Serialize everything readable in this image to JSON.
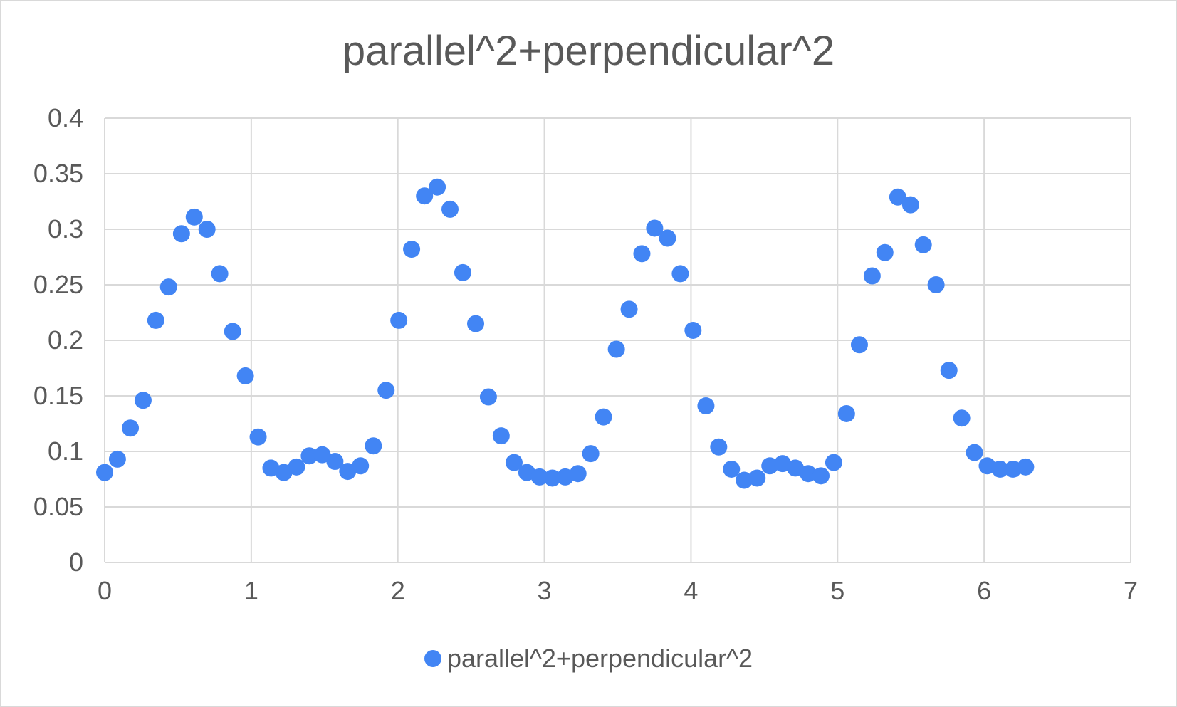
{
  "chart_data": {
    "type": "scatter",
    "title": "parallel^2+perpendicular^2",
    "xlabel": "",
    "ylabel": "",
    "xlim": [
      0,
      7
    ],
    "ylim": [
      0,
      0.4
    ],
    "x_ticks": [
      "0",
      "1",
      "2",
      "3",
      "4",
      "5",
      "6",
      "7"
    ],
    "y_ticks": [
      "0",
      "0.05",
      "0.1",
      "0.15",
      "0.2",
      "0.25",
      "0.3",
      "0.35",
      "0.4"
    ],
    "grid": true,
    "legend_position": "bottom",
    "series": [
      {
        "name": "parallel^2+perpendicular^2",
        "color": "#4285f4",
        "points": [
          [
            0.0,
            0.081
          ],
          [
            0.087,
            0.093
          ],
          [
            0.175,
            0.121
          ],
          [
            0.262,
            0.146
          ],
          [
            0.349,
            0.218
          ],
          [
            0.436,
            0.248
          ],
          [
            0.524,
            0.296
          ],
          [
            0.611,
            0.311
          ],
          [
            0.698,
            0.3
          ],
          [
            0.785,
            0.26
          ],
          [
            0.873,
            0.208
          ],
          [
            0.96,
            0.168
          ],
          [
            1.047,
            0.113
          ],
          [
            1.134,
            0.085
          ],
          [
            1.222,
            0.081
          ],
          [
            1.309,
            0.086
          ],
          [
            1.396,
            0.096
          ],
          [
            1.484,
            0.097
          ],
          [
            1.571,
            0.091
          ],
          [
            1.658,
            0.082
          ],
          [
            1.745,
            0.087
          ],
          [
            1.833,
            0.105
          ],
          [
            1.92,
            0.155
          ],
          [
            2.007,
            0.218
          ],
          [
            2.094,
            0.282
          ],
          [
            2.182,
            0.33
          ],
          [
            2.269,
            0.338
          ],
          [
            2.356,
            0.318
          ],
          [
            2.443,
            0.261
          ],
          [
            2.531,
            0.215
          ],
          [
            2.618,
            0.149
          ],
          [
            2.705,
            0.114
          ],
          [
            2.793,
            0.09
          ],
          [
            2.88,
            0.081
          ],
          [
            2.967,
            0.077
          ],
          [
            3.054,
            0.076
          ],
          [
            3.142,
            0.077
          ],
          [
            3.229,
            0.08
          ],
          [
            3.316,
            0.098
          ],
          [
            3.403,
            0.131
          ],
          [
            3.491,
            0.192
          ],
          [
            3.578,
            0.228
          ],
          [
            3.665,
            0.278
          ],
          [
            3.752,
            0.301
          ],
          [
            3.84,
            0.292
          ],
          [
            3.927,
            0.26
          ],
          [
            4.014,
            0.209
          ],
          [
            4.102,
            0.141
          ],
          [
            4.189,
            0.104
          ],
          [
            4.276,
            0.084
          ],
          [
            4.363,
            0.074
          ],
          [
            4.451,
            0.076
          ],
          [
            4.538,
            0.087
          ],
          [
            4.625,
            0.089
          ],
          [
            4.712,
            0.085
          ],
          [
            4.8,
            0.08
          ],
          [
            4.887,
            0.078
          ],
          [
            4.974,
            0.09
          ],
          [
            5.061,
            0.134
          ],
          [
            5.149,
            0.196
          ],
          [
            5.236,
            0.258
          ],
          [
            5.323,
            0.279
          ],
          [
            5.411,
            0.329
          ],
          [
            5.498,
            0.322
          ],
          [
            5.585,
            0.286
          ],
          [
            5.672,
            0.25
          ],
          [
            5.76,
            0.173
          ],
          [
            5.847,
            0.13
          ],
          [
            5.934,
            0.099
          ],
          [
            6.021,
            0.087
          ],
          [
            6.109,
            0.084
          ],
          [
            6.196,
            0.084
          ],
          [
            6.283,
            0.086
          ]
        ]
      }
    ]
  }
}
